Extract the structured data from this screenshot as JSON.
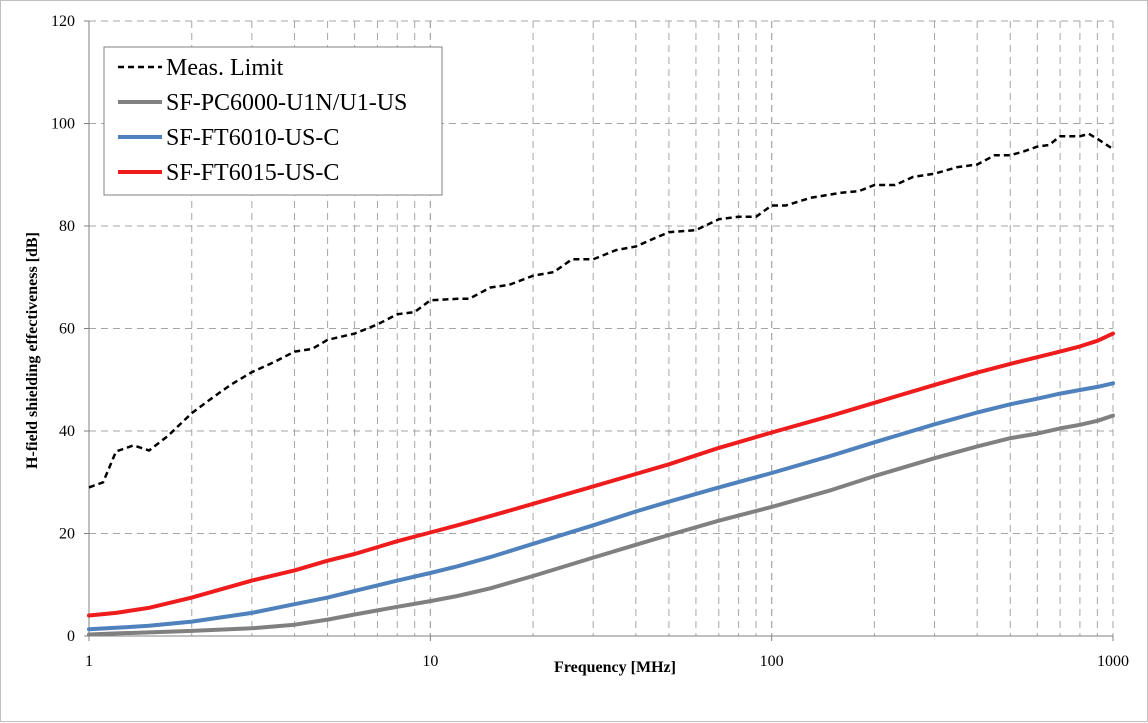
{
  "chart_data": {
    "type": "line",
    "xlabel": "Frequency [MHz]",
    "ylabel": "H-field shielding effectiveness [dB]",
    "x_scale": "log",
    "xlim": [
      1,
      1000
    ],
    "ylim": [
      0,
      120
    ],
    "x_ticks": [
      1,
      10,
      100,
      1000
    ],
    "x_tick_labels": [
      "1",
      "10",
      "100",
      "1000"
    ],
    "y_ticks": [
      0,
      20,
      40,
      60,
      80,
      100,
      120
    ],
    "y_tick_labels": [
      "0",
      "20",
      "40",
      "60",
      "80",
      "100",
      "120"
    ],
    "grid": "dashed",
    "legend_position": "top-left",
    "series": [
      {
        "name": "Meas. Limit",
        "color": "#000000",
        "style": "dashed",
        "points": [
          [
            1,
            29
          ],
          [
            1.1,
            30
          ],
          [
            1.2,
            36
          ],
          [
            1.35,
            37.2
          ],
          [
            1.5,
            36.2
          ],
          [
            1.7,
            39
          ],
          [
            2,
            43.5
          ],
          [
            2.3,
            46.5
          ],
          [
            2.6,
            49
          ],
          [
            3,
            51.5
          ],
          [
            3.5,
            53.5
          ],
          [
            4,
            55.5
          ],
          [
            4.5,
            56
          ],
          [
            5,
            57.8
          ],
          [
            6,
            59
          ],
          [
            7,
            60.8
          ],
          [
            8,
            62.8
          ],
          [
            9,
            63.2
          ],
          [
            10,
            65.5
          ],
          [
            12,
            65.8
          ],
          [
            13,
            65.8
          ],
          [
            15,
            68
          ],
          [
            17,
            68.5
          ],
          [
            20,
            70.3
          ],
          [
            23,
            71
          ],
          [
            26,
            73.5
          ],
          [
            30,
            73.5
          ],
          [
            35,
            75.3
          ],
          [
            40,
            76
          ],
          [
            45,
            77.5
          ],
          [
            50,
            78.8
          ],
          [
            60,
            79.2
          ],
          [
            70,
            81.3
          ],
          [
            80,
            81.8
          ],
          [
            90,
            81.8
          ],
          [
            100,
            84
          ],
          [
            110,
            84
          ],
          [
            130,
            85.5
          ],
          [
            160,
            86.5
          ],
          [
            180,
            86.8
          ],
          [
            200,
            88
          ],
          [
            230,
            88
          ],
          [
            260,
            89.6
          ],
          [
            300,
            90.2
          ],
          [
            350,
            91.5
          ],
          [
            400,
            92
          ],
          [
            450,
            93.8
          ],
          [
            500,
            93.8
          ],
          [
            550,
            94.6
          ],
          [
            600,
            95.5
          ],
          [
            650,
            95.8
          ],
          [
            700,
            97.5
          ],
          [
            800,
            97.5
          ],
          [
            850,
            98
          ],
          [
            900,
            97
          ],
          [
            950,
            96
          ],
          [
            1000,
            95
          ]
        ]
      },
      {
        "name": "SF-PC6000-U1N/U1-US",
        "color": "#808080",
        "style": "solid",
        "points": [
          [
            1,
            0.3
          ],
          [
            1.2,
            0.5
          ],
          [
            1.5,
            0.7
          ],
          [
            2,
            1
          ],
          [
            3,
            1.5
          ],
          [
            4,
            2.2
          ],
          [
            5,
            3.2
          ],
          [
            6,
            4.2
          ],
          [
            8,
            5.7
          ],
          [
            10,
            6.8
          ],
          [
            12,
            7.8
          ],
          [
            15,
            9.3
          ],
          [
            20,
            11.7
          ],
          [
            30,
            15.3
          ],
          [
            40,
            17.8
          ],
          [
            50,
            19.7
          ],
          [
            70,
            22.5
          ],
          [
            100,
            25.2
          ],
          [
            150,
            28.5
          ],
          [
            200,
            31.2
          ],
          [
            300,
            34.7
          ],
          [
            400,
            37
          ],
          [
            500,
            38.6
          ],
          [
            600,
            39.5
          ],
          [
            700,
            40.5
          ],
          [
            800,
            41.2
          ],
          [
            900,
            42
          ],
          [
            1000,
            43
          ]
        ]
      },
      {
        "name": "SF-FT6010-US-C",
        "color": "#4f81bd",
        "style": "solid",
        "points": [
          [
            1,
            1.3
          ],
          [
            1.2,
            1.6
          ],
          [
            1.5,
            2
          ],
          [
            2,
            2.8
          ],
          [
            3,
            4.5
          ],
          [
            4,
            6.2
          ],
          [
            5,
            7.5
          ],
          [
            6,
            8.8
          ],
          [
            8,
            10.8
          ],
          [
            10,
            12.3
          ],
          [
            12,
            13.6
          ],
          [
            15,
            15.4
          ],
          [
            20,
            18
          ],
          [
            30,
            21.6
          ],
          [
            40,
            24.3
          ],
          [
            50,
            26.2
          ],
          [
            70,
            29
          ],
          [
            100,
            31.8
          ],
          [
            150,
            35.2
          ],
          [
            200,
            37.8
          ],
          [
            300,
            41.3
          ],
          [
            400,
            43.6
          ],
          [
            500,
            45.2
          ],
          [
            600,
            46.3
          ],
          [
            700,
            47.3
          ],
          [
            800,
            48
          ],
          [
            900,
            48.6
          ],
          [
            1000,
            49.3
          ]
        ]
      },
      {
        "name": "SF-FT6015-US-C",
        "color": "#ee1c1c",
        "style": "solid",
        "points": [
          [
            1,
            4
          ],
          [
            1.2,
            4.5
          ],
          [
            1.5,
            5.5
          ],
          [
            2,
            7.5
          ],
          [
            3,
            10.8
          ],
          [
            4,
            12.8
          ],
          [
            5,
            14.7
          ],
          [
            6,
            16
          ],
          [
            8,
            18.5
          ],
          [
            10,
            20.2
          ],
          [
            12,
            21.6
          ],
          [
            15,
            23.4
          ],
          [
            20,
            25.8
          ],
          [
            30,
            29.2
          ],
          [
            40,
            31.6
          ],
          [
            50,
            33.5
          ],
          [
            70,
            36.7
          ],
          [
            100,
            39.7
          ],
          [
            150,
            43
          ],
          [
            200,
            45.5
          ],
          [
            300,
            49
          ],
          [
            400,
            51.4
          ],
          [
            500,
            53.1
          ],
          [
            600,
            54.4
          ],
          [
            700,
            55.5
          ],
          [
            800,
            56.5
          ],
          [
            900,
            57.6
          ],
          [
            1000,
            59
          ]
        ]
      }
    ]
  }
}
